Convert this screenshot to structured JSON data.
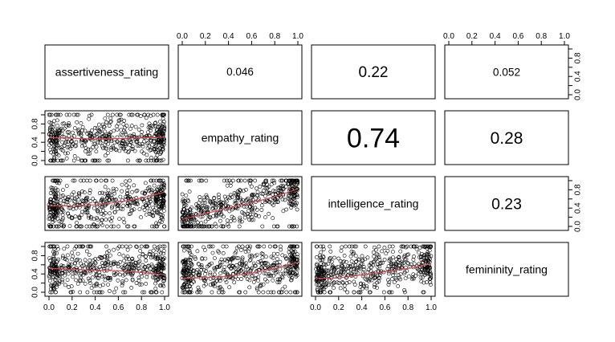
{
  "chart_data": {
    "type": "scatter",
    "subtype": "pairs-matrix",
    "variables": [
      "assertiveness_rating",
      "empathy_rating",
      "intelligence_rating",
      "femininity_rating"
    ],
    "axis_range": [
      0,
      1
    ],
    "tick_labels": [
      "0.0",
      "0.2",
      "0.4",
      "0.6",
      "0.8",
      "1.0"
    ],
    "correlations": [
      {
        "row": 0,
        "col": 1,
        "vars": [
          "assertiveness_rating",
          "empathy_rating"
        ],
        "text": "0.046",
        "value": 0.046
      },
      {
        "row": 0,
        "col": 2,
        "vars": [
          "assertiveness_rating",
          "intelligence_rating"
        ],
        "text": "0.22",
        "value": 0.22
      },
      {
        "row": 0,
        "col": 3,
        "vars": [
          "assertiveness_rating",
          "femininity_rating"
        ],
        "text": "0.052",
        "value": 0.052
      },
      {
        "row": 1,
        "col": 2,
        "vars": [
          "empathy_rating",
          "intelligence_rating"
        ],
        "text": "0.74",
        "value": 0.74
      },
      {
        "row": 1,
        "col": 3,
        "vars": [
          "empathy_rating",
          "femininity_rating"
        ],
        "text": "0.28",
        "value": 0.28
      },
      {
        "row": 2,
        "col": 3,
        "vars": [
          "intelligence_rating",
          "femininity_rating"
        ],
        "text": "0.23",
        "value": 0.23
      }
    ],
    "scatter_panels": [
      {
        "row": 1,
        "col": 0,
        "x": "assertiveness_rating",
        "y": "empathy_rating",
        "corr": 0.046,
        "smooth": [
          [
            0.0,
            0.5
          ],
          [
            0.2,
            0.49
          ],
          [
            0.4,
            0.47
          ],
          [
            0.6,
            0.48
          ],
          [
            0.8,
            0.5
          ],
          [
            1.0,
            0.51
          ]
        ]
      },
      {
        "row": 2,
        "col": 0,
        "x": "assertiveness_rating",
        "y": "intelligence_rating",
        "corr": 0.22,
        "smooth": [
          [
            0.0,
            0.45
          ],
          [
            0.2,
            0.45
          ],
          [
            0.4,
            0.47
          ],
          [
            0.6,
            0.53
          ],
          [
            0.8,
            0.62
          ],
          [
            1.0,
            0.75
          ]
        ]
      },
      {
        "row": 3,
        "col": 0,
        "x": "assertiveness_rating",
        "y": "femininity_rating",
        "corr": 0.052,
        "smooth": [
          [
            0.0,
            0.52
          ],
          [
            0.2,
            0.5
          ],
          [
            0.4,
            0.48
          ],
          [
            0.6,
            0.47
          ],
          [
            0.8,
            0.43
          ],
          [
            1.0,
            0.38
          ]
        ]
      },
      {
        "row": 2,
        "col": 1,
        "x": "empathy_rating",
        "y": "intelligence_rating",
        "corr": 0.74,
        "smooth": [
          [
            0.0,
            0.15
          ],
          [
            0.2,
            0.28
          ],
          [
            0.4,
            0.4
          ],
          [
            0.6,
            0.52
          ],
          [
            0.8,
            0.65
          ],
          [
            1.0,
            0.82
          ]
        ]
      },
      {
        "row": 3,
        "col": 1,
        "x": "empathy_rating",
        "y": "femininity_rating",
        "corr": 0.28,
        "smooth": [
          [
            0.0,
            0.3
          ],
          [
            0.2,
            0.32
          ],
          [
            0.4,
            0.35
          ],
          [
            0.6,
            0.42
          ],
          [
            0.8,
            0.52
          ],
          [
            1.0,
            0.65
          ]
        ]
      },
      {
        "row": 3,
        "col": 2,
        "x": "intelligence_rating",
        "y": "femininity_rating",
        "corr": 0.23,
        "smooth": [
          [
            0.0,
            0.3
          ],
          [
            0.2,
            0.31
          ],
          [
            0.4,
            0.38
          ],
          [
            0.6,
            0.45
          ],
          [
            0.8,
            0.52
          ],
          [
            1.0,
            0.62
          ]
        ]
      }
    ],
    "grid": false,
    "legend": "none",
    "colors": {
      "points": "#000000",
      "smooth_line": "#e0474c",
      "panel_border": "#000000"
    }
  }
}
